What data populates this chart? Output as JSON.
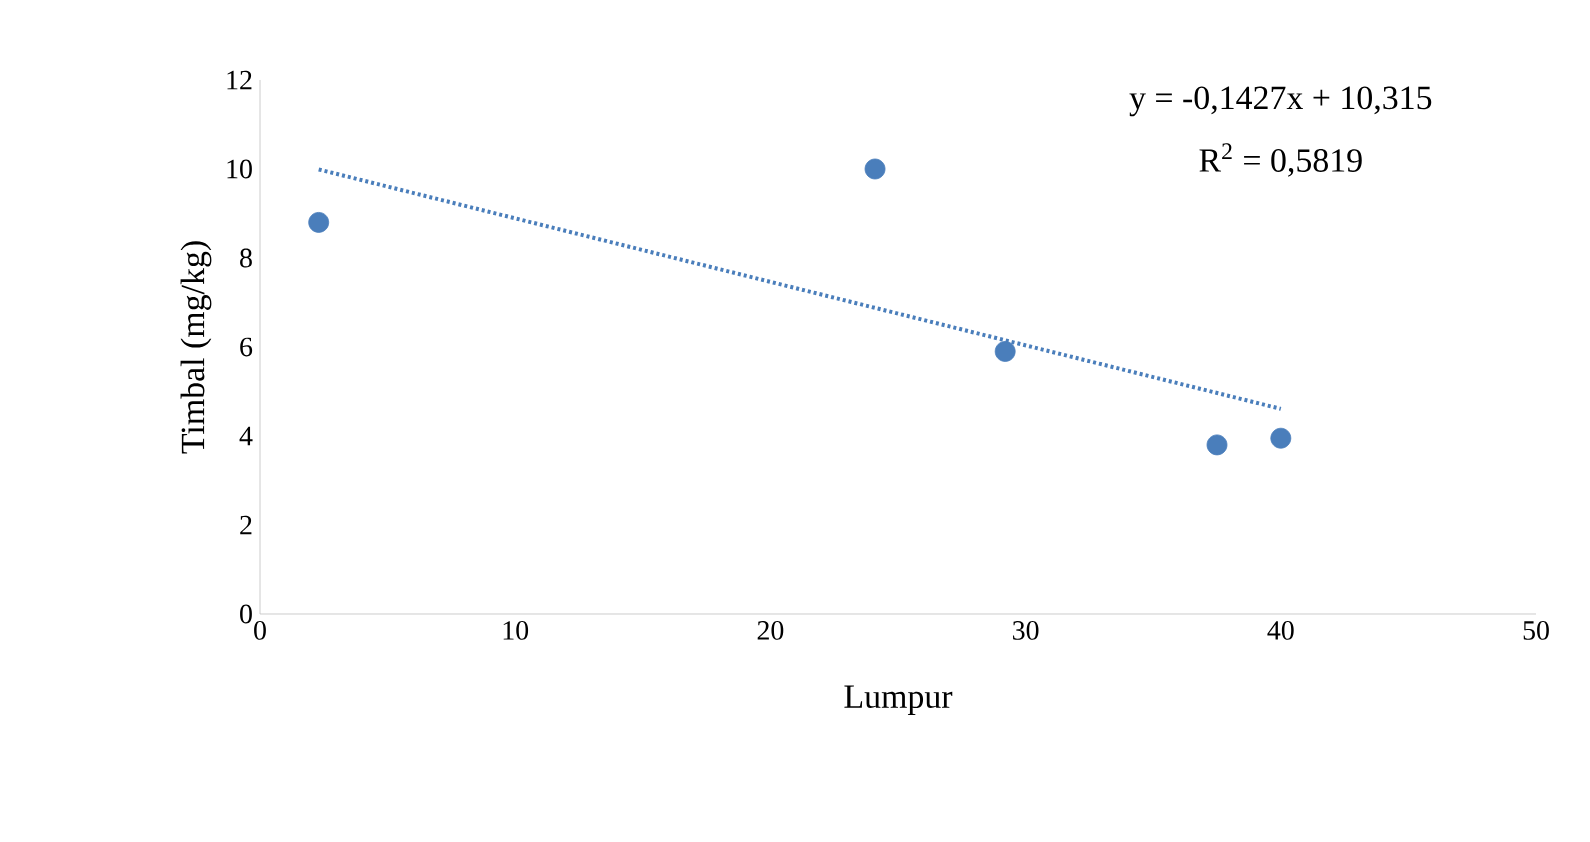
{
  "chart_data": {
    "type": "scatter",
    "xlabel": "Lumpur",
    "ylabel": "Timbal (mg/kg)",
    "annotations": [
      "y = -0,1427x + 10,315",
      "R$^{2}$ = 0,5819"
    ],
    "series": [
      {
        "color": "#4a7ebb",
        "marker": "circle",
        "x": [
          2.3,
          24.1,
          29.2,
          37.5,
          40.0
        ],
        "values": [
          8.8,
          10.0,
          5.9,
          3.8,
          3.95
        ]
      },
      {
        "type": "line",
        "color": "#4a7ebb",
        "marker": "none",
        "line_style": "dotted",
        "x": [
          2.3,
          40.0
        ],
        "values": [
          9.99,
          4.61
        ]
      }
    ],
    "xlim": [
      0,
      50
    ],
    "xticks": [
      0,
      10,
      20,
      30,
      40,
      50
    ],
    "ylim": [
      0,
      12
    ],
    "yticks": [
      0,
      2,
      4,
      6,
      8,
      10,
      12
    ]
  }
}
